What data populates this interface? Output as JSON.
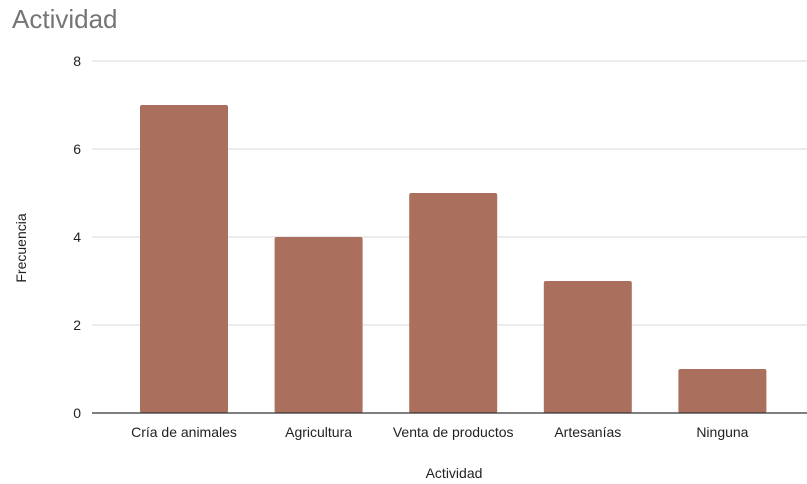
{
  "chart_data": {
    "type": "bar",
    "title": "Actividad",
    "xlabel": "Actividad",
    "ylabel": "Frecuencia",
    "categories": [
      "Cría de animales",
      "Agricultura",
      "Venta de productos",
      "Artesanías",
      "Ninguna"
    ],
    "values": [
      7,
      4,
      5,
      3,
      1
    ],
    "ylim": [
      0,
      8
    ],
    "yticks": [
      0,
      2,
      4,
      6,
      8
    ],
    "grid": true,
    "legend": "none",
    "bar_color": "#ab6f5d",
    "gridline_color": "#d9d9d9",
    "baseline_color": "#333333",
    "text_color": "#222222",
    "title_color": "#757575"
  }
}
